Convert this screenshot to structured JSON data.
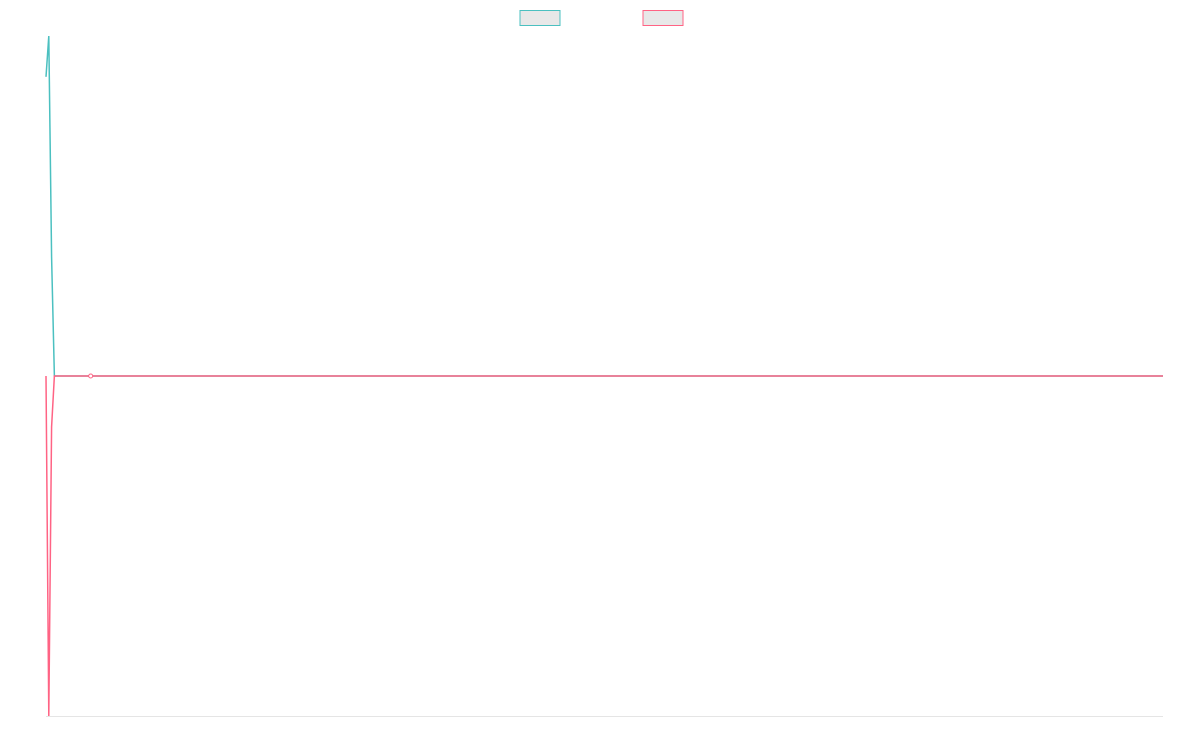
{
  "chart_data": {
    "type": "line",
    "x": [
      0,
      1,
      2,
      3,
      400
    ],
    "xlim": [
      0,
      400
    ],
    "ylim": [
      -1,
      1
    ],
    "series": [
      {
        "color": "#4bc0c0",
        "values": [
          0.88,
          1,
          0.35,
          0,
          0
        ]
      },
      {
        "color": "#ff6384",
        "values": [
          0,
          -1,
          -0.15,
          0,
          0
        ]
      }
    ],
    "highlight": {
      "x": 16,
      "value": 0,
      "color": "#ff6384"
    },
    "legend": "top"
  }
}
